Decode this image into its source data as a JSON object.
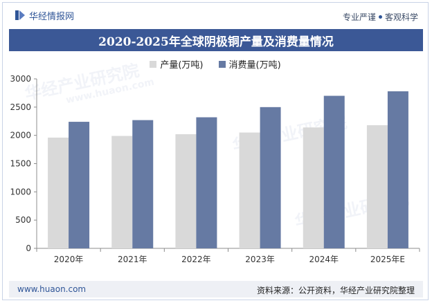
{
  "header": {
    "brand": "华经情报网",
    "tagline_left": "专业严谨",
    "tagline_right": "客观科学",
    "title": "2020-2025年全球阴极铜产量及消费量情况"
  },
  "colors": {
    "production": "#d9d9d9",
    "consumption": "#667aa3",
    "title_bg": "#3b5896"
  },
  "watermark": {
    "text": "华经产业研究院",
    "url": "www.huaon.com"
  },
  "footer": {
    "url": "www.huaon.com",
    "source": "资料来源：公开资料，华经产业研究院整理"
  },
  "chart_data": {
    "type": "bar",
    "title": "2020-2025年全球阴极铜产量及消费量情况",
    "categories": [
      "2020年",
      "2021年",
      "2022年",
      "2023年",
      "2024年",
      "2025年E"
    ],
    "series": [
      {
        "name": "产量(万吨)",
        "values": [
          1960,
          1990,
          2020,
          2050,
          2140,
          2180
        ]
      },
      {
        "name": "消费量(万吨)",
        "values": [
          2240,
          2270,
          2320,
          2500,
          2700,
          2780
        ]
      }
    ],
    "ylim": [
      0,
      3000
    ],
    "yticks": [
      0,
      500,
      1000,
      1500,
      2000,
      2500,
      3000
    ],
    "xlabel": "",
    "ylabel": "",
    "grid": false,
    "legend": "top-center"
  }
}
